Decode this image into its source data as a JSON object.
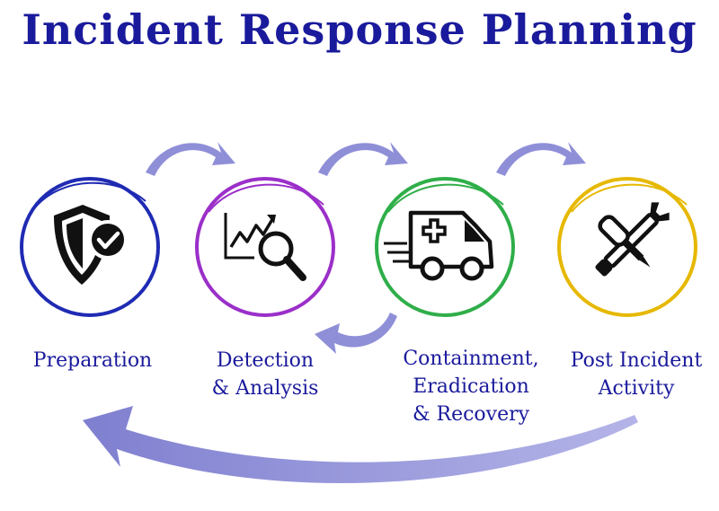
{
  "title": "Incident Response Planning",
  "colors": {
    "title": "#1a1a9c",
    "arrow": "#8f8fd8",
    "icon": "#111111"
  },
  "stages": [
    {
      "id": "preparation",
      "lines": [
        "Preparation"
      ],
      "ring_color": "#1f2bb3",
      "icon": "shield-check-icon"
    },
    {
      "id": "detection",
      "lines": [
        "Detection",
        "& Analysis"
      ],
      "ring_color": "#9b2fc9",
      "icon": "chart-magnifier-icon"
    },
    {
      "id": "containment",
      "lines": [
        "Containment,",
        "Eradication",
        "& Recovery"
      ],
      "ring_color": "#2fae49",
      "icon": "ambulance-icon"
    },
    {
      "id": "post-incident",
      "lines": [
        "Post Incident",
        "Activity"
      ],
      "ring_color": "#e6b800",
      "icon": "tools-icon"
    }
  ]
}
